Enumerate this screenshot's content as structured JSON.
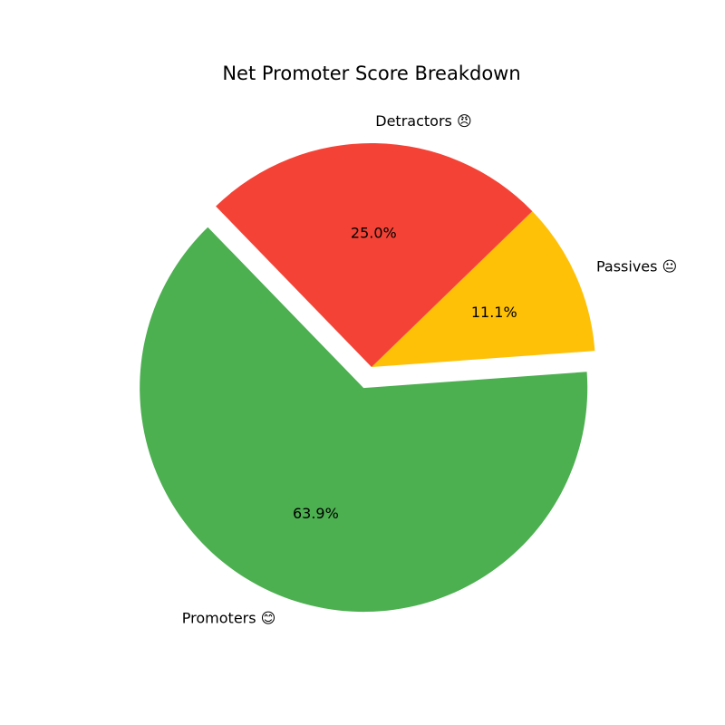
{
  "chart_data": {
    "type": "pie",
    "title": "Net Promoter Score Breakdown",
    "slices": [
      {
        "label": "Promoters 😊",
        "pct_label": "63.9%",
        "value": 63.9,
        "color": "#4CAF50",
        "exploded": true
      },
      {
        "label": "Passives 😐",
        "pct_label": "11.1%",
        "value": 11.1,
        "color": "#FFC107",
        "exploded": false
      },
      {
        "label": "Detractors 😠",
        "pct_label": "25.0%",
        "value": 25.0,
        "color": "#F44336",
        "exploded": false
      }
    ]
  }
}
